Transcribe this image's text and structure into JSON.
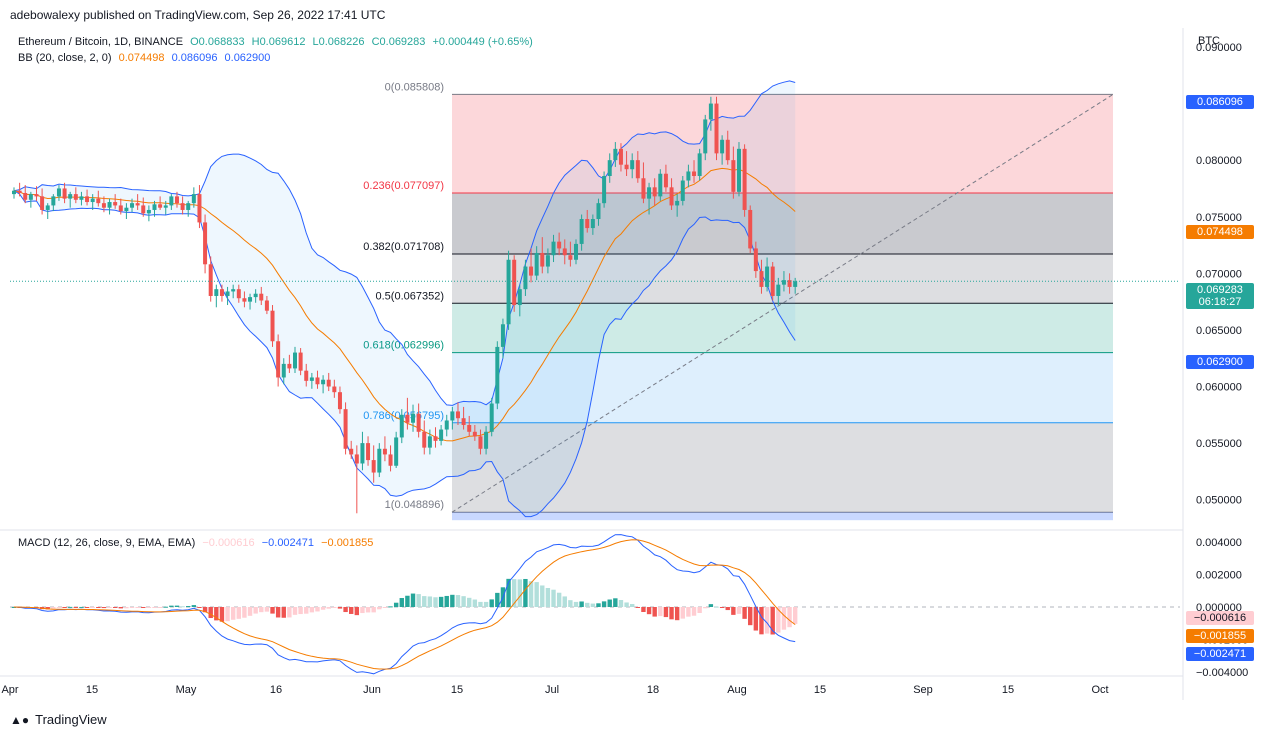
{
  "header": {
    "published": "adebowalexy published on TradingView.com, Sep 26, 2022 17:41 UTC"
  },
  "symbol_legend": {
    "symbol": "Ethereum / Bitcoin, 1D, BINANCE",
    "o": "O0.068833",
    "h": "H0.069612",
    "l": "L0.068226",
    "c": "C0.069283",
    "change": "+0.000449 (+0.65%)"
  },
  "bb_legend": {
    "name": "BB (20, close, 2, 0)",
    "basis": "0.074498",
    "upper": "0.086096",
    "lower": "0.062900"
  },
  "macd_legend": {
    "name": "MACD (12, 26, close, 9, EMA, EMA)",
    "hist": "−0.000616",
    "macd": "−0.002471",
    "signal": "−0.001855"
  },
  "price_axis": {
    "unit": "BTC",
    "ticks": [
      "0.090000",
      "0.085000",
      "0.080000",
      "0.075000",
      "0.070000",
      "0.065000",
      "0.060000",
      "0.055000",
      "0.050000"
    ]
  },
  "macd_axis": {
    "ticks": [
      "0.004000",
      "0.002000",
      "0.000000",
      "−0.002000",
      "−0.004000"
    ]
  },
  "time_axis": {
    "ticks": [
      "Apr",
      "15",
      "May",
      "16",
      "Jun",
      "15",
      "Jul",
      "18",
      "Aug",
      "15",
      "Sep",
      "15",
      "Oct"
    ]
  },
  "price_tags": {
    "upper": "0.086096",
    "basis": "0.074498",
    "last": "0.069283",
    "countdown": "06:18:27",
    "lower": "0.062900",
    "macd_hist": "−0.000616",
    "macd_signal": "−0.001855",
    "macd_line": "−0.002471"
  },
  "fib_labels": [
    "0(0.085808)",
    "0.236(0.077097)",
    "0.382(0.071708)",
    "0.5(0.067352)",
    "0.618(0.062996)",
    "0.786(0.056795)",
    "1(0.048896)"
  ],
  "brand": "TradingView",
  "colors": {
    "up": "#26a69a",
    "down": "#ef5350",
    "bb_band": "#2962ff",
    "bb_basis": "#f57c00",
    "macd_line": "#2962ff",
    "macd_signal": "#f57c00",
    "hist_up_strong": "#26a69a",
    "hist_up_weak": "#b2dfdb",
    "hist_down_strong": "#ef5350",
    "hist_down_weak": "#ffcdd2"
  },
  "chart_data": {
    "type": "candlestick",
    "price_range": [
      0.0475,
      0.0915
    ],
    "fibonacci_retracement": [
      {
        "level": 0,
        "price": 0.085808
      },
      {
        "level": 0.236,
        "price": 0.077097
      },
      {
        "level": 0.382,
        "price": 0.071708
      },
      {
        "level": 0.5,
        "price": 0.067352
      },
      {
        "level": 0.618,
        "price": 0.062996
      },
      {
        "level": 0.786,
        "price": 0.056795
      },
      {
        "level": 1,
        "price": 0.048896
      }
    ],
    "candles": [
      [
        0.077,
        0.0776,
        0.0766,
        0.0773
      ],
      [
        0.0773,
        0.078,
        0.0768,
        0.0771
      ],
      [
        0.0771,
        0.0778,
        0.0762,
        0.0765
      ],
      [
        0.0765,
        0.0772,
        0.0758,
        0.077
      ],
      [
        0.077,
        0.0777,
        0.0764,
        0.0768
      ],
      [
        0.0768,
        0.0775,
        0.0752,
        0.0756
      ],
      [
        0.0756,
        0.0762,
        0.0748,
        0.076
      ],
      [
        0.076,
        0.077,
        0.0755,
        0.0768
      ],
      [
        0.0768,
        0.0778,
        0.0764,
        0.0775
      ],
      [
        0.0775,
        0.078,
        0.0762,
        0.0766
      ],
      [
        0.0766,
        0.0772,
        0.0758,
        0.077
      ],
      [
        0.077,
        0.0776,
        0.0762,
        0.0765
      ],
      [
        0.0765,
        0.0772,
        0.076,
        0.0768
      ],
      [
        0.0768,
        0.0774,
        0.076,
        0.0763
      ],
      [
        0.0763,
        0.077,
        0.0756,
        0.0766
      ],
      [
        0.0766,
        0.0773,
        0.0759,
        0.0762
      ],
      [
        0.0762,
        0.0768,
        0.0754,
        0.0758
      ],
      [
        0.0758,
        0.0766,
        0.0752,
        0.0763
      ],
      [
        0.0763,
        0.077,
        0.0757,
        0.076
      ],
      [
        0.076,
        0.0766,
        0.0752,
        0.0755
      ],
      [
        0.0755,
        0.0762,
        0.0748,
        0.0758
      ],
      [
        0.0758,
        0.0766,
        0.0754,
        0.0762
      ],
      [
        0.0762,
        0.077,
        0.0756,
        0.076
      ],
      [
        0.076,
        0.0767,
        0.075,
        0.0753
      ],
      [
        0.0753,
        0.076,
        0.0746,
        0.0756
      ],
      [
        0.0756,
        0.0764,
        0.075,
        0.0761
      ],
      [
        0.0761,
        0.0768,
        0.0756,
        0.0758
      ],
      [
        0.0758,
        0.0764,
        0.0752,
        0.076
      ],
      [
        0.076,
        0.077,
        0.0756,
        0.0768
      ],
      [
        0.0768,
        0.0772,
        0.0758,
        0.0762
      ],
      [
        0.0762,
        0.0768,
        0.0752,
        0.0756
      ],
      [
        0.0756,
        0.0764,
        0.075,
        0.0762
      ],
      [
        0.0762,
        0.0776,
        0.0758,
        0.077
      ],
      [
        0.077,
        0.0778,
        0.074,
        0.0745
      ],
      [
        0.0745,
        0.0752,
        0.07,
        0.0708
      ],
      [
        0.0708,
        0.0715,
        0.0675,
        0.068
      ],
      [
        0.068,
        0.069,
        0.067,
        0.0686
      ],
      [
        0.0686,
        0.069,
        0.0675,
        0.068
      ],
      [
        0.068,
        0.0688,
        0.0672,
        0.0684
      ],
      [
        0.0684,
        0.069,
        0.0678,
        0.0686
      ],
      [
        0.0686,
        0.069,
        0.0674,
        0.0678
      ],
      [
        0.0678,
        0.0684,
        0.067,
        0.0675
      ],
      [
        0.0675,
        0.0682,
        0.0668,
        0.0679
      ],
      [
        0.0679,
        0.0686,
        0.0674,
        0.0682
      ],
      [
        0.0682,
        0.0688,
        0.0672,
        0.0676
      ],
      [
        0.0676,
        0.068,
        0.0664,
        0.0667
      ],
      [
        0.0667,
        0.0672,
        0.0635,
        0.064
      ],
      [
        0.064,
        0.0646,
        0.06,
        0.0608
      ],
      [
        0.0608,
        0.0625,
        0.0602,
        0.062
      ],
      [
        0.062,
        0.0628,
        0.0612,
        0.0616
      ],
      [
        0.0616,
        0.0635,
        0.0612,
        0.063
      ],
      [
        0.063,
        0.0634,
        0.061,
        0.0614
      ],
      [
        0.0614,
        0.062,
        0.06,
        0.0605
      ],
      [
        0.0605,
        0.0612,
        0.0598,
        0.0608
      ],
      [
        0.0608,
        0.0614,
        0.0598,
        0.0602
      ],
      [
        0.0602,
        0.061,
        0.0594,
        0.0606
      ],
      [
        0.0606,
        0.0612,
        0.0596,
        0.06
      ],
      [
        0.06,
        0.0606,
        0.059,
        0.0595
      ],
      [
        0.0595,
        0.06,
        0.0576,
        0.058
      ],
      [
        0.058,
        0.0586,
        0.054,
        0.0545
      ],
      [
        0.0545,
        0.0552,
        0.0536,
        0.054
      ],
      [
        0.054,
        0.0548,
        0.0488,
        0.0532
      ],
      [
        0.0532,
        0.056,
        0.0526,
        0.055
      ],
      [
        0.055,
        0.0556,
        0.053,
        0.0535
      ],
      [
        0.0535,
        0.0548,
        0.0515,
        0.0524
      ],
      [
        0.0524,
        0.055,
        0.052,
        0.0545
      ],
      [
        0.0545,
        0.0556,
        0.0534,
        0.054
      ],
      [
        0.054,
        0.0548,
        0.0525,
        0.053
      ],
      [
        0.053,
        0.056,
        0.0528,
        0.0555
      ],
      [
        0.0555,
        0.058,
        0.055,
        0.0575
      ],
      [
        0.0575,
        0.059,
        0.0562,
        0.0568
      ],
      [
        0.0568,
        0.0584,
        0.056,
        0.0576
      ],
      [
        0.0576,
        0.0585,
        0.0555,
        0.056
      ],
      [
        0.056,
        0.057,
        0.054,
        0.0546
      ],
      [
        0.0546,
        0.0562,
        0.054,
        0.0556
      ],
      [
        0.0556,
        0.0564,
        0.0546,
        0.0552
      ],
      [
        0.0552,
        0.0566,
        0.0548,
        0.0562
      ],
      [
        0.0562,
        0.0575,
        0.0556,
        0.057
      ],
      [
        0.057,
        0.0582,
        0.0562,
        0.0578
      ],
      [
        0.0578,
        0.0586,
        0.0566,
        0.0572
      ],
      [
        0.0572,
        0.0582,
        0.0562,
        0.0566
      ],
      [
        0.0566,
        0.0574,
        0.0556,
        0.056
      ],
      [
        0.056,
        0.0566,
        0.0552,
        0.0556
      ],
      [
        0.0556,
        0.0562,
        0.054,
        0.0545
      ],
      [
        0.0545,
        0.0565,
        0.054,
        0.056
      ],
      [
        0.056,
        0.059,
        0.0556,
        0.0585
      ],
      [
        0.0585,
        0.064,
        0.058,
        0.0635
      ],
      [
        0.0635,
        0.066,
        0.0625,
        0.0655
      ],
      [
        0.0655,
        0.072,
        0.065,
        0.0712
      ],
      [
        0.0712,
        0.0716,
        0.0666,
        0.0672
      ],
      [
        0.0672,
        0.069,
        0.0662,
        0.0686
      ],
      [
        0.0686,
        0.0712,
        0.068,
        0.0706
      ],
      [
        0.0706,
        0.0722,
        0.0692,
        0.0698
      ],
      [
        0.0698,
        0.0724,
        0.0694,
        0.0718
      ],
      [
        0.0718,
        0.0732,
        0.07,
        0.0706
      ],
      [
        0.0706,
        0.0722,
        0.07,
        0.0716
      ],
      [
        0.0716,
        0.0734,
        0.071,
        0.0728
      ],
      [
        0.0728,
        0.0736,
        0.0716,
        0.0722
      ],
      [
        0.0722,
        0.073,
        0.0708,
        0.0716
      ],
      [
        0.0716,
        0.0728,
        0.0706,
        0.0712
      ],
      [
        0.0712,
        0.073,
        0.0708,
        0.0726
      ],
      [
        0.0726,
        0.0752,
        0.072,
        0.0748
      ],
      [
        0.0748,
        0.0756,
        0.0736,
        0.074
      ],
      [
        0.074,
        0.0752,
        0.0734,
        0.0748
      ],
      [
        0.0748,
        0.0766,
        0.0742,
        0.0762
      ],
      [
        0.0762,
        0.079,
        0.0758,
        0.0786
      ],
      [
        0.0786,
        0.0806,
        0.078,
        0.08
      ],
      [
        0.08,
        0.0816,
        0.0794,
        0.081
      ],
      [
        0.081,
        0.0815,
        0.079,
        0.0796
      ],
      [
        0.0796,
        0.0808,
        0.0786,
        0.0792
      ],
      [
        0.0792,
        0.0806,
        0.0784,
        0.08
      ],
      [
        0.08,
        0.0808,
        0.078,
        0.0784
      ],
      [
        0.0784,
        0.0798,
        0.0762,
        0.0766
      ],
      [
        0.0766,
        0.078,
        0.0752,
        0.0776
      ],
      [
        0.0776,
        0.0784,
        0.076,
        0.0768
      ],
      [
        0.0768,
        0.0792,
        0.0764,
        0.0788
      ],
      [
        0.0788,
        0.0796,
        0.0772,
        0.0776
      ],
      [
        0.0776,
        0.0784,
        0.0756,
        0.076
      ],
      [
        0.076,
        0.077,
        0.075,
        0.0764
      ],
      [
        0.0764,
        0.0786,
        0.076,
        0.0782
      ],
      [
        0.0782,
        0.0796,
        0.0776,
        0.079
      ],
      [
        0.079,
        0.08,
        0.078,
        0.0786
      ],
      [
        0.0786,
        0.081,
        0.0782,
        0.0806
      ],
      [
        0.0806,
        0.084,
        0.08,
        0.0836
      ],
      [
        0.0836,
        0.0856,
        0.0826,
        0.085
      ],
      [
        0.085,
        0.0856,
        0.08,
        0.0806
      ],
      [
        0.0806,
        0.0822,
        0.0796,
        0.0818
      ],
      [
        0.0818,
        0.0826,
        0.0796,
        0.08
      ],
      [
        0.08,
        0.0812,
        0.0766,
        0.0772
      ],
      [
        0.0772,
        0.0816,
        0.0768,
        0.081
      ],
      [
        0.081,
        0.0814,
        0.075,
        0.0756
      ],
      [
        0.0756,
        0.076,
        0.0718,
        0.0722
      ],
      [
        0.0722,
        0.0728,
        0.0696,
        0.0702
      ],
      [
        0.0702,
        0.0712,
        0.0682,
        0.0688
      ],
      [
        0.0688,
        0.0714,
        0.0684,
        0.0706
      ],
      [
        0.0706,
        0.071,
        0.0676,
        0.068
      ],
      [
        0.068,
        0.0696,
        0.0672,
        0.069
      ],
      [
        0.069,
        0.0702,
        0.0684,
        0.0694
      ],
      [
        0.0694,
        0.07,
        0.0682,
        0.0688
      ],
      [
        0.0688,
        0.0696,
        0.0682,
        0.0693
      ]
    ]
  }
}
